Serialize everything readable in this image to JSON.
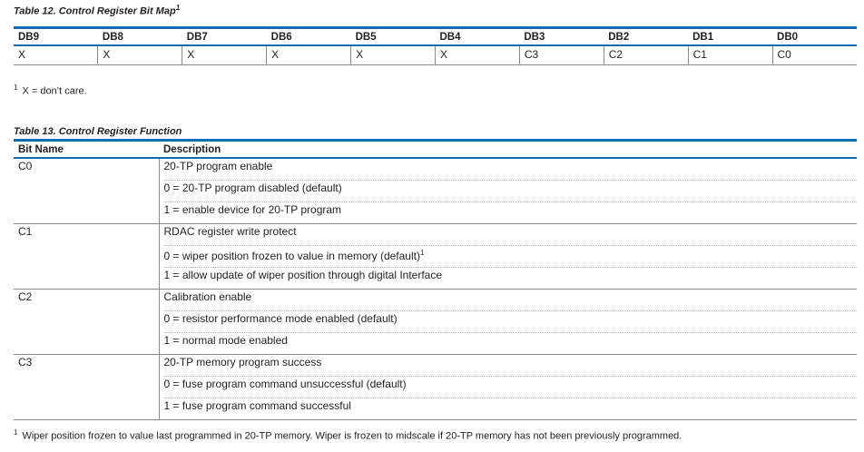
{
  "table12": {
    "caption": "Table 12. Control Register Bit Map",
    "caption_footnote_mark": "1",
    "headers": [
      "DB9",
      "DB8",
      "DB7",
      "DB6",
      "DB5",
      "DB4",
      "DB3",
      "DB2",
      "DB1",
      "DB0"
    ],
    "row": [
      "X",
      "X",
      "X",
      "X",
      "X",
      "X",
      "C3",
      "C2",
      "C1",
      "C0"
    ],
    "footnote_mark": "1",
    "footnote": "X = don’t care."
  },
  "table13": {
    "caption": "Table 13. Control Register Function",
    "headers": {
      "bit_name": "Bit Name",
      "description": "Description"
    },
    "rows": [
      {
        "bit": "C0",
        "lines": [
          "20-TP program enable",
          "0 = 20-TP program disabled (default)",
          "1 = enable device for 20-TP program"
        ]
      },
      {
        "bit": "C1",
        "lines": [
          "RDAC register write protect",
          "0 = wiper position frozen to value in memory (default)",
          "1 = allow update of wiper position through digital Interface"
        ]
      },
      {
        "bit": "C2",
        "lines": [
          "Calibration enable",
          "0 = resistor performance mode enabled (default)",
          "1 = normal mode enabled"
        ]
      },
      {
        "bit": "C3",
        "lines": [
          "20-TP memory program success",
          "0 = fuse program command unsuccessful (default)",
          "1 = fuse program command successful"
        ]
      }
    ],
    "row1_line1_footnote_mark": "1",
    "footnote_mark": "1",
    "footnote": "Wiper position frozen to value last programmed in 20-TP memory. Wiper is frozen to midscale if 20-TP memory has not been previously programmed."
  }
}
